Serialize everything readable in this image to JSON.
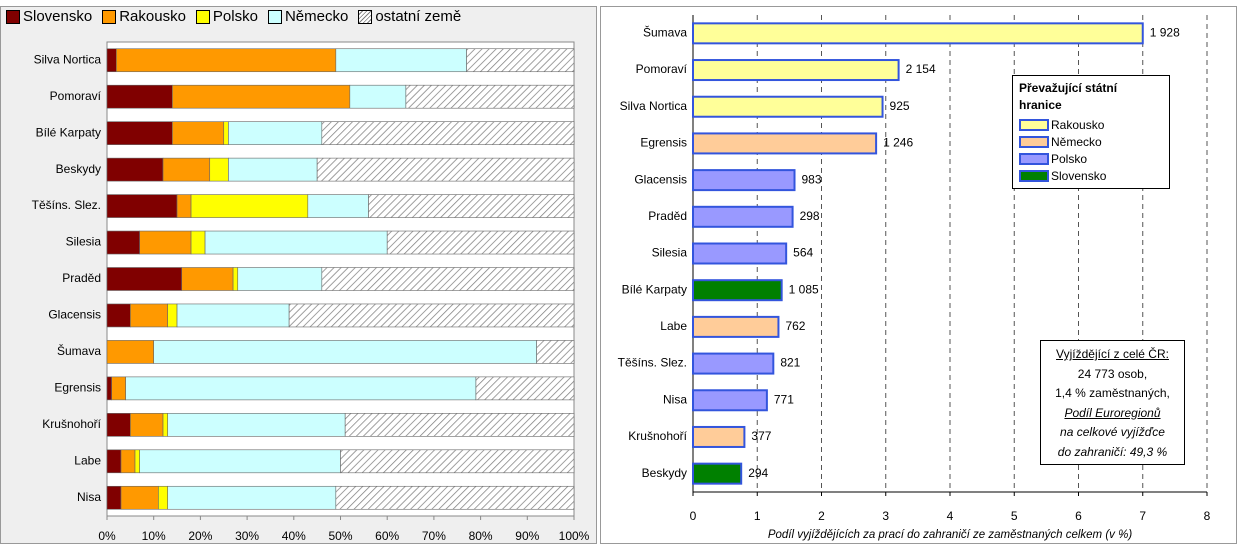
{
  "chart_data": [
    {
      "type": "stacked-bar-100",
      "orientation": "horizontal",
      "categories": [
        "Silva Nortica",
        "Pomoraví",
        "Bílé Karpaty",
        "Beskydy",
        "Těšíns. Slez.",
        "Silesia",
        "Praděd",
        "Glacensis",
        "Šumava",
        "Egrensis",
        "Krušnohoří",
        "Labe",
        "Nisa"
      ],
      "series": [
        {
          "name": "Slovensko",
          "color": "#800000",
          "values": [
            2,
            14,
            14,
            12,
            15,
            7,
            16,
            5,
            0,
            1,
            5,
            3,
            3
          ]
        },
        {
          "name": "Rakousko",
          "color": "#ff9900",
          "values": [
            47,
            38,
            11,
            10,
            3,
            11,
            11,
            8,
            10,
            3,
            7,
            3,
            8
          ]
        },
        {
          "name": "Polsko",
          "color": "#ffff00",
          "values": [
            0,
            0,
            1,
            4,
            25,
            3,
            1,
            2,
            0,
            0,
            1,
            1,
            2
          ]
        },
        {
          "name": "Německo",
          "color": "#ccffff",
          "values": [
            28,
            12,
            20,
            19,
            13,
            39,
            18,
            24,
            82,
            75,
            38,
            43,
            36
          ]
        },
        {
          "name": "ostatní země",
          "color": "#808080",
          "pattern": "hatch",
          "values": [
            23,
            36,
            54,
            55,
            44,
            40,
            54,
            61,
            8,
            21,
            49,
            50,
            51
          ]
        }
      ],
      "xlim": [
        0,
        100
      ],
      "xticks": [
        {
          "value": 0,
          "label": "0%"
        },
        {
          "value": 10,
          "label": "10%"
        },
        {
          "value": 20,
          "label": "20%"
        },
        {
          "value": 30,
          "label": "30%"
        },
        {
          "value": 40,
          "label": "40%"
        },
        {
          "value": 50,
          "label": "50%"
        },
        {
          "value": 60,
          "label": "60%"
        },
        {
          "value": 70,
          "label": "70%"
        },
        {
          "value": 80,
          "label": "80%"
        },
        {
          "value": 90,
          "label": "90%"
        },
        {
          "value": 100,
          "label": "100%"
        }
      ]
    },
    {
      "type": "bar",
      "orientation": "horizontal",
      "categories": [
        "Šumava",
        "Pomoraví",
        "Silva Nortica",
        "Egrensis",
        "Glacensis",
        "Praděd",
        "Silesia",
        "Bílé Karpaty",
        "Labe",
        "Těšíns. Slez.",
        "Nisa",
        "Krušnohoří",
        "Beskydy"
      ],
      "values": [
        7.0,
        3.2,
        2.95,
        2.85,
        1.58,
        1.55,
        1.45,
        1.38,
        1.33,
        1.25,
        1.15,
        0.8,
        0.75
      ],
      "bar_labels": [
        "1 928",
        "2 154",
        "925",
        "1 246",
        "983",
        "298",
        "564",
        "1 085",
        "762",
        "821",
        "771",
        "377",
        "294"
      ],
      "colors": [
        "#ffff99",
        "#ffff99",
        "#ffff99",
        "#ffcc99",
        "#9999ff",
        "#9999ff",
        "#9999ff",
        "#008000",
        "#ffcc99",
        "#9999ff",
        "#9999ff",
        "#ffcc99",
        "#008000"
      ],
      "edge_color": "#3355dd",
      "xlabel": "Podíl vyjíždějících za prací do zahraničí ze zaměstnaných celkem (v %)",
      "xlim": [
        0,
        8
      ],
      "xticks": [
        0,
        1,
        2,
        3,
        4,
        5,
        6,
        7,
        8
      ],
      "grid": true,
      "legend": {
        "title": "Převažující státní hranice",
        "items": [
          {
            "name": "Rakousko",
            "color": "#ffff99"
          },
          {
            "name": "Německo",
            "color": "#ffcc99"
          },
          {
            "name": "Polsko",
            "color": "#9999ff"
          },
          {
            "name": "Slovensko",
            "color": "#008000"
          }
        ]
      },
      "note": [
        "Vyjíždějící z celé ČR:",
        "24 773 osob,",
        "1,4 % zaměstnaných,",
        "Podíl Euroregionů",
        "na celkové vyjížďce",
        "do zahraničí: 49,3 %"
      ]
    }
  ]
}
